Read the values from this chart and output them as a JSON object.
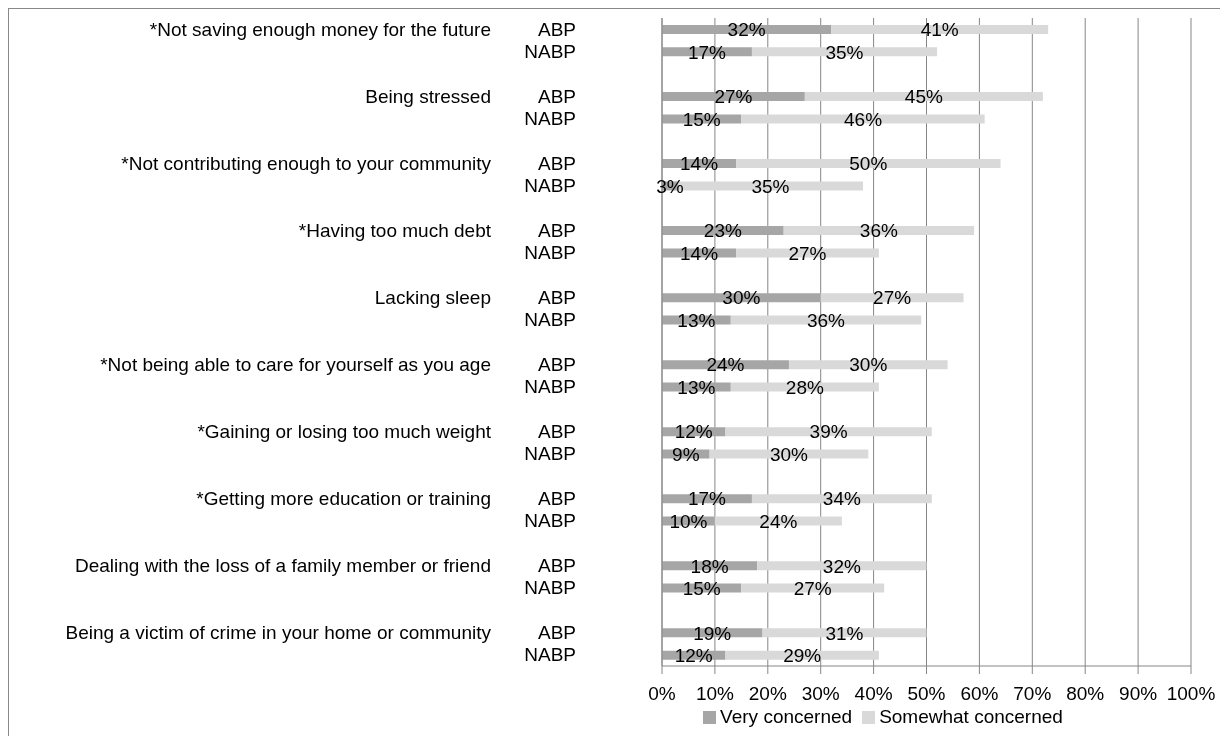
{
  "chart_data": {
    "type": "bar",
    "orientation": "horizontal",
    "stacked": true,
    "categories": [
      "ABP",
      "NABP",
      null,
      "ABP",
      "NABP",
      null,
      "ABP",
      "NABP",
      null,
      "ABP",
      "NABP",
      null,
      "ABP",
      "NABP",
      null,
      "ABP",
      "NABP",
      null,
      "ABP",
      "NABP",
      null,
      "ABP",
      "NABP",
      null,
      "ABP",
      "NABP",
      null,
      "ABP",
      "NABP"
    ],
    "series": [
      {
        "name": "Very concerned",
        "color": "#a6a6a6",
        "values": [
          32,
          17,
          null,
          27,
          15,
          null,
          14,
          3,
          null,
          23,
          14,
          null,
          30,
          13,
          null,
          24,
          13,
          null,
          12,
          9,
          null,
          17,
          10,
          null,
          18,
          15,
          null,
          19,
          12
        ],
        "value_labels": [
          "32%",
          "17%",
          null,
          "27%",
          "15%",
          null,
          "14%",
          "3%",
          null,
          "23%",
          "14%",
          null,
          "30%",
          "13%",
          null,
          "24%",
          "13%",
          null,
          "12%",
          "9%",
          null,
          "17%",
          "10%",
          null,
          "18%",
          "15%",
          null,
          "19%",
          "12%"
        ]
      },
      {
        "name": "Somewhat concerned",
        "color": "#d9d9d9",
        "values": [
          41,
          35,
          null,
          45,
          46,
          null,
          50,
          35,
          null,
          36,
          27,
          null,
          27,
          36,
          null,
          30,
          28,
          null,
          39,
          30,
          null,
          34,
          24,
          null,
          32,
          27,
          null,
          31,
          29
        ],
        "value_labels": [
          "41%",
          "35%",
          null,
          "45%",
          "46%",
          null,
          "50%",
          "35%",
          null,
          "36%",
          "27%",
          null,
          "27%",
          "36%",
          null,
          "30%",
          "28%",
          null,
          "39%",
          "30%",
          null,
          "34%",
          "24%",
          null,
          "32%",
          "27%",
          null,
          "31%",
          "29%"
        ]
      }
    ],
    "xlim": [
      0,
      100
    ],
    "xticks": [
      {
        "value": 0,
        "label": "0%"
      },
      {
        "value": 10,
        "label": "10%"
      },
      {
        "value": 20,
        "label": "20%"
      },
      {
        "value": 30,
        "label": "30%"
      },
      {
        "value": 40,
        "label": "40%"
      },
      {
        "value": 50,
        "label": "50%"
      },
      {
        "value": 60,
        "label": "60%"
      },
      {
        "value": 70,
        "label": "70%"
      },
      {
        "value": 80,
        "label": "80%"
      },
      {
        "value": 90,
        "label": "90%"
      },
      {
        "value": 100,
        "label": "100%"
      }
    ],
    "grid": "x",
    "legend": "bottom",
    "annotations": [
      "*Not saving enough money for the future",
      "Being stressed",
      "*Not contributing enough to your community",
      "*Having too much debt",
      "Lacking sleep",
      "*Not being able to care for yourself as you age",
      "*Gaining or losing too much weight",
      "*Getting more education or training",
      "Dealing with the loss of a family member or friend",
      "Being a victim of crime in your home or community"
    ]
  }
}
